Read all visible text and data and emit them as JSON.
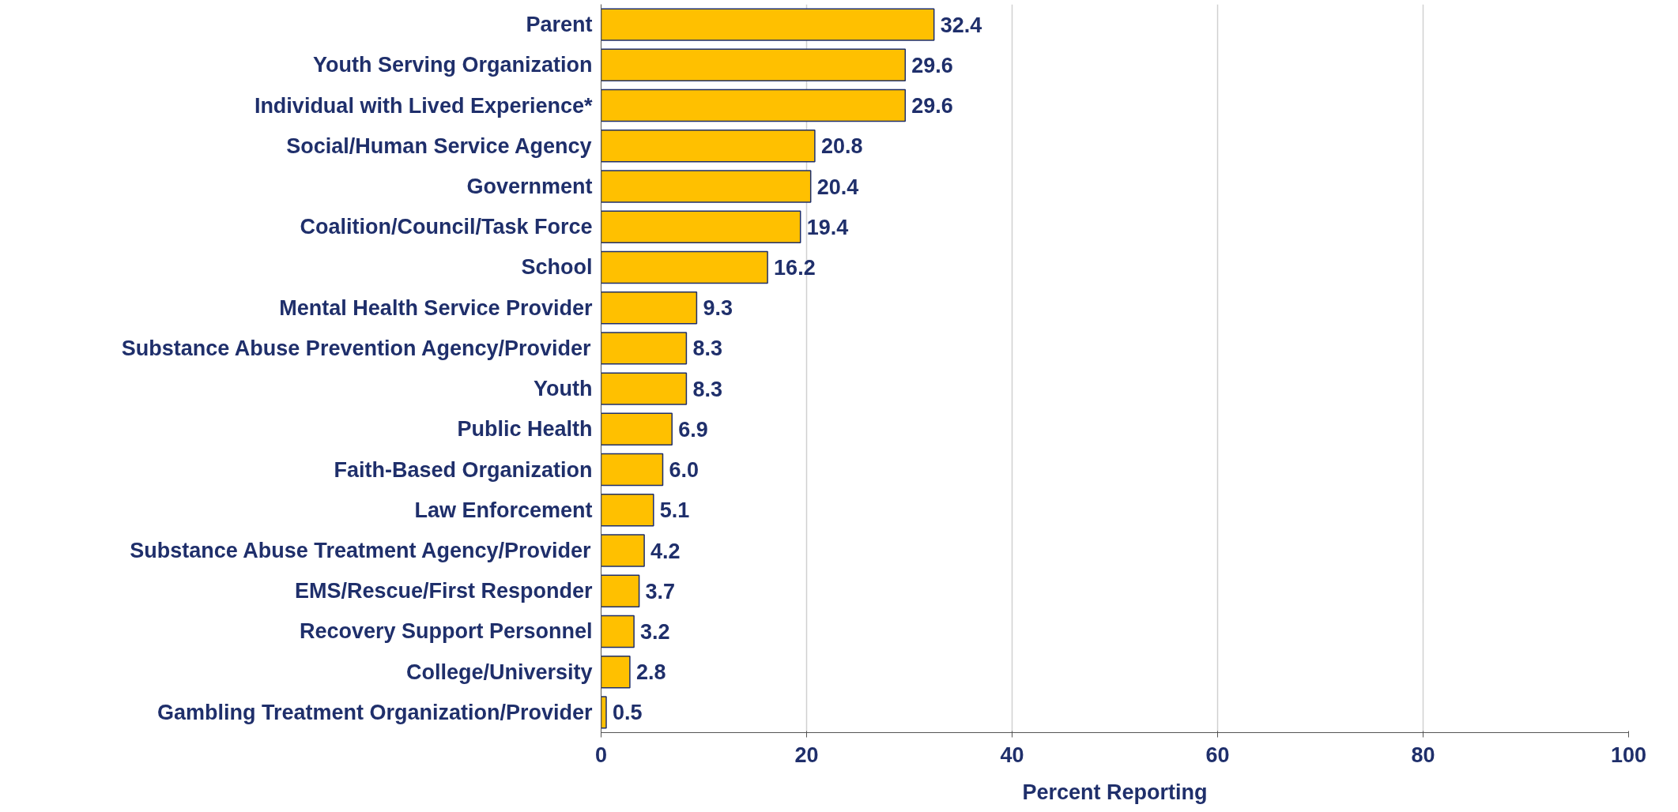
{
  "chart_data": {
    "type": "bar",
    "orientation": "horizontal",
    "xlabel": "Percent Reporting",
    "categories": [
      "Parent",
      "Youth Serving Organization",
      "Individual with Lived Experience*",
      "Social/Human Service Agency",
      "Government",
      "Coalition/Council/Task Force",
      "School",
      "Mental Health Service Provider",
      "Substance Abuse Prevention Agency/Provider",
      "Youth",
      "Public Health",
      "Faith-Based Organization",
      "Law Enforcement",
      "Substance Abuse Treatment Agency/Provider",
      "EMS/Rescue/First Responder",
      "Recovery Support Personnel",
      "College/University",
      "Gambling Treatment Organization/Provider"
    ],
    "values": [
      32.4,
      29.6,
      29.6,
      20.8,
      20.4,
      19.4,
      16.2,
      9.3,
      8.3,
      8.3,
      6.9,
      6.0,
      5.1,
      4.2,
      3.7,
      3.2,
      2.8,
      0.5
    ],
    "value_labels": [
      "32.4",
      "29.6",
      "29.6",
      "20.8",
      "20.4",
      "19.4",
      "16.2",
      "9.3",
      "8.3",
      "8.3",
      "6.9",
      "6.0",
      "5.1",
      "4.2",
      "3.7",
      "3.2",
      "2.8",
      "0.5"
    ],
    "color": "#ffc000",
    "xlim": [
      0,
      100
    ],
    "xticks": [
      0,
      20,
      40,
      60,
      80,
      100
    ],
    "grid": "x"
  }
}
